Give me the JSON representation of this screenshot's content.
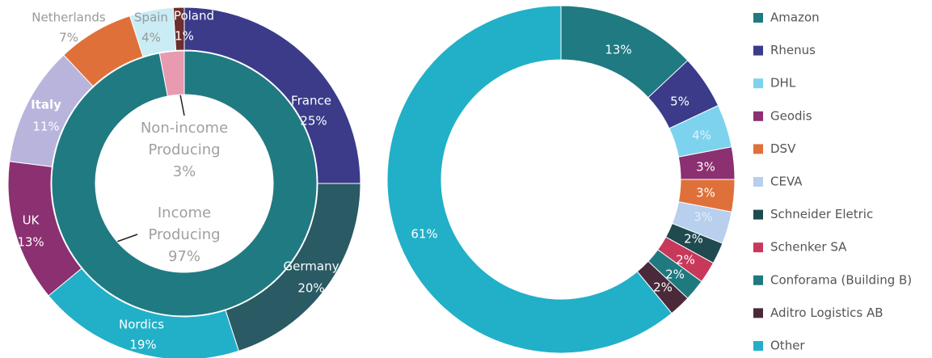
{
  "chart_data": [
    {
      "type": "donut",
      "rings": [
        {
          "categories": [
            "France",
            "Germany",
            "Nordics",
            "UK",
            "Italy",
            "Netherlands",
            "Spain",
            "Poland"
          ],
          "values": [
            25,
            20,
            19,
            13,
            11,
            7,
            4,
            1
          ],
          "value_labels": [
            "25%",
            "20%",
            "19%",
            "13%",
            "11%",
            "7%",
            "4%",
            "1%"
          ],
          "colors": [
            "#3b3b8a",
            "#2a5a63",
            "#22b0c8",
            "#8b3070",
            "#b8b4dc",
            "#e0703a",
            "#c9ecf5",
            "#6b2e2e"
          ]
        },
        {
          "categories": [
            "Income Producing",
            "Non-income Producing"
          ],
          "values": [
            97,
            3
          ],
          "value_labels": [
            "97%",
            "3%"
          ],
          "colors": [
            "#207a82",
            "#e89ab0"
          ]
        }
      ]
    },
    {
      "type": "donut",
      "categories": [
        "Amazon",
        "Rhenus",
        "DHL",
        "Geodis",
        "DSV",
        "CEVA",
        "Schneider Eletric",
        "Schenker SA",
        "Conforama (Building B)",
        "Aditro Logistics AB",
        "Other"
      ],
      "values": [
        13,
        5,
        4,
        3,
        3,
        3,
        2,
        2,
        2,
        2,
        61
      ],
      "value_labels": [
        "13%",
        "5%",
        "4%",
        "3%",
        "3%",
        "3%",
        "2%",
        "2%",
        "2%",
        "2%",
        "61%"
      ],
      "colors": [
        "#207a82",
        "#3b3b8a",
        "#7dd3ee",
        "#8b3070",
        "#e0703a",
        "#b8cfee",
        "#1f4a4f",
        "#c8385a",
        "#1f7a80",
        "#4a2a3a",
        "#22b0c8"
      ],
      "legend": "right"
    }
  ]
}
